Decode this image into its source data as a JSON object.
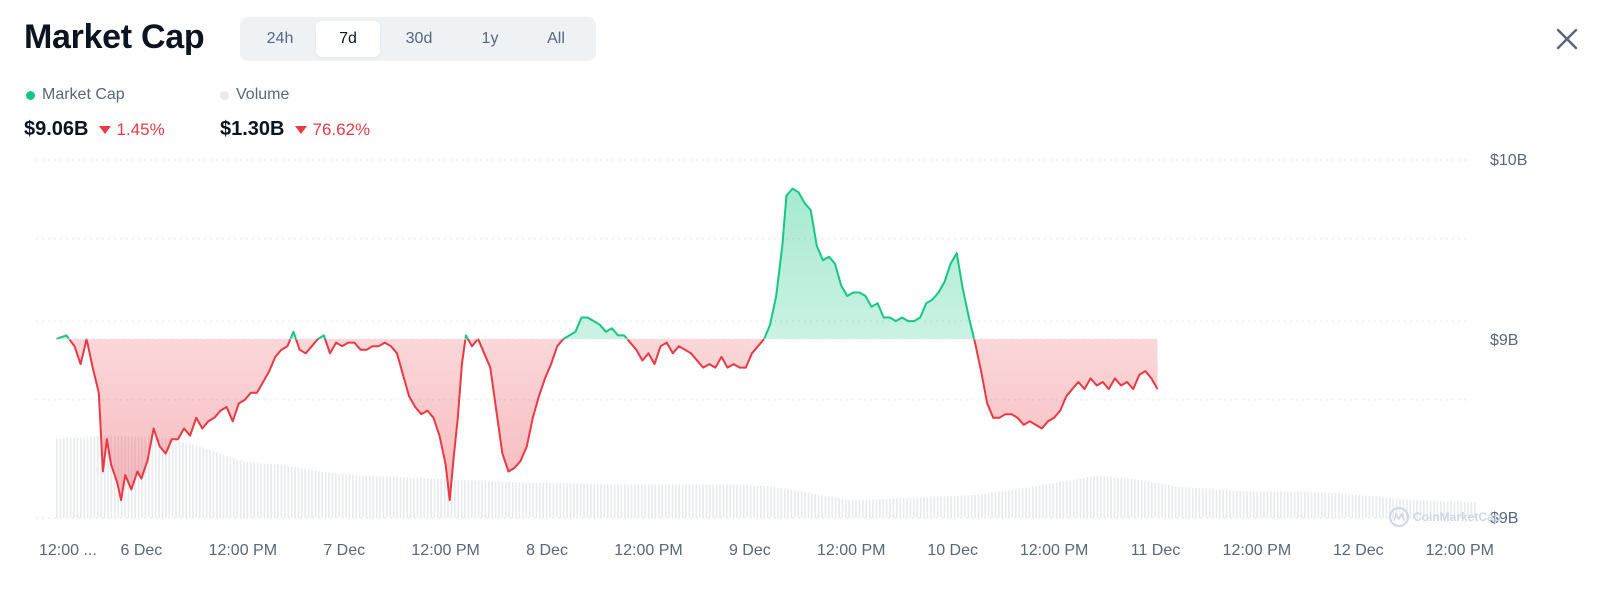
{
  "header": {
    "title": "Market Cap",
    "ranges": [
      "24h",
      "7d",
      "30d",
      "1y",
      "All"
    ],
    "active_range": "7d",
    "close_icon": "close-icon"
  },
  "legend": {
    "market_cap": {
      "label": "Market Cap",
      "color": "#16c784"
    },
    "volume": {
      "label": "Volume",
      "color": "#e8eaee"
    }
  },
  "stats": {
    "market_cap": {
      "value": "$9.06B",
      "change": "1.45%",
      "direction": "down"
    },
    "volume": {
      "value": "$1.30B",
      "change": "76.62%",
      "direction": "down"
    }
  },
  "watermark": "CoinMarketCap",
  "colors": {
    "up": "#16c784",
    "down": "#ea3943",
    "grid": "#e3e6ea",
    "axis_text": "#58667e"
  },
  "chart_data": {
    "type": "area",
    "title": "Market Cap",
    "baseline": 9.5,
    "baseline_label": "$9B",
    "y_unit": "B USD",
    "ylim": [
      9.0,
      10.0
    ],
    "y_ticks": [
      {
        "value": 10.0,
        "label": "$10B"
      },
      {
        "value": 9.5,
        "label": "$9B"
      },
      {
        "value": 9.0,
        "label": "$9B"
      }
    ],
    "x_range": [
      0,
      7.1
    ],
    "x_ticks": [
      {
        "x": 0.14,
        "label": "12:00 ..."
      },
      {
        "x": 0.5,
        "label": "6 Dec"
      },
      {
        "x": 1.0,
        "label": "12:00 PM"
      },
      {
        "x": 1.5,
        "label": "7 Dec"
      },
      {
        "x": 2.0,
        "label": "12:00 PM"
      },
      {
        "x": 2.5,
        "label": "8 Dec"
      },
      {
        "x": 3.0,
        "label": "12:00 PM"
      },
      {
        "x": 3.5,
        "label": "9 Dec"
      },
      {
        "x": 4.0,
        "label": "12:00 PM"
      },
      {
        "x": 4.5,
        "label": "10 Dec"
      },
      {
        "x": 5.0,
        "label": "12:00 PM"
      },
      {
        "x": 5.5,
        "label": "11 Dec"
      },
      {
        "x": 6.0,
        "label": "12:00 PM"
      },
      {
        "x": 6.5,
        "label": "12 Dec"
      },
      {
        "x": 7.0,
        "label": "12:00 PM"
      }
    ],
    "grid": true,
    "grid_style": "dotted",
    "series": [
      {
        "name": "Market Cap",
        "points": [
          [
            0.08,
            9.5
          ],
          [
            0.13,
            9.51
          ],
          [
            0.17,
            9.48
          ],
          [
            0.2,
            9.43
          ],
          [
            0.23,
            9.5
          ],
          [
            0.26,
            9.42
          ],
          [
            0.29,
            9.35
          ],
          [
            0.31,
            9.13
          ],
          [
            0.33,
            9.22
          ],
          [
            0.35,
            9.15
          ],
          [
            0.38,
            9.1
          ],
          [
            0.4,
            9.05
          ],
          [
            0.42,
            9.12
          ],
          [
            0.45,
            9.08
          ],
          [
            0.48,
            9.13
          ],
          [
            0.5,
            9.11
          ],
          [
            0.53,
            9.16
          ],
          [
            0.56,
            9.25
          ],
          [
            0.59,
            9.2
          ],
          [
            0.62,
            9.18
          ],
          [
            0.65,
            9.22
          ],
          [
            0.68,
            9.22
          ],
          [
            0.71,
            9.25
          ],
          [
            0.74,
            9.23
          ],
          [
            0.77,
            9.28
          ],
          [
            0.8,
            9.25
          ],
          [
            0.83,
            9.27
          ],
          [
            0.86,
            9.28
          ],
          [
            0.89,
            9.3
          ],
          [
            0.92,
            9.31
          ],
          [
            0.95,
            9.27
          ],
          [
            0.98,
            9.32
          ],
          [
            1.01,
            9.33
          ],
          [
            1.04,
            9.35
          ],
          [
            1.07,
            9.35
          ],
          [
            1.1,
            9.38
          ],
          [
            1.13,
            9.41
          ],
          [
            1.16,
            9.45
          ],
          [
            1.19,
            9.47
          ],
          [
            1.22,
            9.48
          ],
          [
            1.25,
            9.52
          ],
          [
            1.28,
            9.47
          ],
          [
            1.31,
            9.46
          ],
          [
            1.34,
            9.48
          ],
          [
            1.37,
            9.5
          ],
          [
            1.4,
            9.51
          ],
          [
            1.43,
            9.46
          ],
          [
            1.46,
            9.49
          ],
          [
            1.49,
            9.48
          ],
          [
            1.52,
            9.49
          ],
          [
            1.55,
            9.49
          ],
          [
            1.58,
            9.47
          ],
          [
            1.61,
            9.47
          ],
          [
            1.64,
            9.48
          ],
          [
            1.67,
            9.48
          ],
          [
            1.7,
            9.49
          ],
          [
            1.73,
            9.48
          ],
          [
            1.76,
            9.46
          ],
          [
            1.79,
            9.4
          ],
          [
            1.82,
            9.34
          ],
          [
            1.85,
            9.31
          ],
          [
            1.88,
            9.29
          ],
          [
            1.91,
            9.3
          ],
          [
            1.94,
            9.28
          ],
          [
            1.97,
            9.23
          ],
          [
            2.0,
            9.15
          ],
          [
            2.02,
            9.05
          ],
          [
            2.04,
            9.17
          ],
          [
            2.06,
            9.28
          ],
          [
            2.08,
            9.43
          ],
          [
            2.1,
            9.51
          ],
          [
            2.13,
            9.48
          ],
          [
            2.16,
            9.5
          ],
          [
            2.19,
            9.46
          ],
          [
            2.22,
            9.42
          ],
          [
            2.25,
            9.3
          ],
          [
            2.28,
            9.18
          ],
          [
            2.31,
            9.13
          ],
          [
            2.34,
            9.14
          ],
          [
            2.37,
            9.16
          ],
          [
            2.4,
            9.2
          ],
          [
            2.43,
            9.28
          ],
          [
            2.46,
            9.34
          ],
          [
            2.49,
            9.39
          ],
          [
            2.52,
            9.43
          ],
          [
            2.55,
            9.48
          ],
          [
            2.58,
            9.5
          ],
          [
            2.61,
            9.51
          ],
          [
            2.64,
            9.52
          ],
          [
            2.67,
            9.56
          ],
          [
            2.7,
            9.56
          ],
          [
            2.73,
            9.55
          ],
          [
            2.76,
            9.54
          ],
          [
            2.79,
            9.52
          ],
          [
            2.82,
            9.53
          ],
          [
            2.85,
            9.51
          ],
          [
            2.88,
            9.51
          ],
          [
            2.91,
            9.49
          ],
          [
            2.94,
            9.47
          ],
          [
            2.97,
            9.44
          ],
          [
            3.0,
            9.46
          ],
          [
            3.03,
            9.43
          ],
          [
            3.06,
            9.48
          ],
          [
            3.09,
            9.49
          ],
          [
            3.12,
            9.46
          ],
          [
            3.15,
            9.48
          ],
          [
            3.18,
            9.47
          ],
          [
            3.21,
            9.46
          ],
          [
            3.24,
            9.44
          ],
          [
            3.27,
            9.42
          ],
          [
            3.3,
            9.43
          ],
          [
            3.33,
            9.42
          ],
          [
            3.36,
            9.45
          ],
          [
            3.39,
            9.42
          ],
          [
            3.42,
            9.43
          ],
          [
            3.45,
            9.42
          ],
          [
            3.48,
            9.42
          ],
          [
            3.51,
            9.46
          ],
          [
            3.54,
            9.48
          ],
          [
            3.57,
            9.5
          ],
          [
            3.6,
            9.54
          ],
          [
            3.63,
            9.62
          ],
          [
            3.66,
            9.76
          ],
          [
            3.68,
            9.9
          ],
          [
            3.71,
            9.92
          ],
          [
            3.74,
            9.91
          ],
          [
            3.77,
            9.88
          ],
          [
            3.8,
            9.86
          ],
          [
            3.83,
            9.76
          ],
          [
            3.86,
            9.72
          ],
          [
            3.89,
            9.73
          ],
          [
            3.92,
            9.71
          ],
          [
            3.95,
            9.65
          ],
          [
            3.98,
            9.62
          ],
          [
            4.01,
            9.63
          ],
          [
            4.04,
            9.63
          ],
          [
            4.07,
            9.62
          ],
          [
            4.1,
            9.59
          ],
          [
            4.13,
            9.6
          ],
          [
            4.16,
            9.56
          ],
          [
            4.19,
            9.56
          ],
          [
            4.22,
            9.55
          ],
          [
            4.25,
            9.56
          ],
          [
            4.28,
            9.55
          ],
          [
            4.31,
            9.55
          ],
          [
            4.34,
            9.56
          ],
          [
            4.37,
            9.6
          ],
          [
            4.4,
            9.61
          ],
          [
            4.43,
            9.63
          ],
          [
            4.46,
            9.66
          ],
          [
            4.49,
            9.71
          ],
          [
            4.52,
            9.74
          ],
          [
            4.55,
            9.64
          ],
          [
            4.58,
            9.56
          ],
          [
            4.61,
            9.49
          ],
          [
            4.64,
            9.41
          ],
          [
            4.67,
            9.32
          ],
          [
            4.7,
            9.28
          ],
          [
            4.73,
            9.28
          ],
          [
            4.76,
            9.29
          ],
          [
            4.79,
            9.29
          ],
          [
            4.82,
            9.28
          ],
          [
            4.85,
            9.26
          ],
          [
            4.88,
            9.27
          ],
          [
            4.91,
            9.26
          ],
          [
            4.94,
            9.25
          ],
          [
            4.97,
            9.27
          ],
          [
            5.0,
            9.28
          ],
          [
            5.03,
            9.3
          ],
          [
            5.06,
            9.34
          ],
          [
            5.09,
            9.36
          ],
          [
            5.12,
            9.38
          ],
          [
            5.15,
            9.36
          ],
          [
            5.18,
            9.39
          ],
          [
            5.21,
            9.37
          ],
          [
            5.24,
            9.38
          ],
          [
            5.27,
            9.36
          ],
          [
            5.3,
            9.39
          ],
          [
            5.33,
            9.37
          ],
          [
            5.36,
            9.38
          ],
          [
            5.39,
            9.36
          ],
          [
            5.42,
            9.4
          ],
          [
            5.45,
            9.41
          ],
          [
            5.48,
            9.39
          ],
          [
            5.51,
            9.36
          ]
        ]
      },
      {
        "name": "Volume",
        "points": [
          [
            0.08,
            0.45
          ],
          [
            0.2,
            0.46
          ],
          [
            0.32,
            0.47
          ],
          [
            0.5,
            0.46
          ],
          [
            0.65,
            0.45
          ],
          [
            0.8,
            0.4
          ],
          [
            1.0,
            0.32
          ],
          [
            1.2,
            0.3
          ],
          [
            1.4,
            0.26
          ],
          [
            1.6,
            0.24
          ],
          [
            1.8,
            0.23
          ],
          [
            2.0,
            0.22
          ],
          [
            2.2,
            0.21
          ],
          [
            2.4,
            0.2
          ],
          [
            2.6,
            0.2
          ],
          [
            2.8,
            0.19
          ],
          [
            3.0,
            0.19
          ],
          [
            3.2,
            0.19
          ],
          [
            3.4,
            0.19
          ],
          [
            3.6,
            0.18
          ],
          [
            3.8,
            0.14
          ],
          [
            4.0,
            0.1
          ],
          [
            4.2,
            0.11
          ],
          [
            4.4,
            0.12
          ],
          [
            4.6,
            0.13
          ],
          [
            4.8,
            0.16
          ],
          [
            5.0,
            0.2
          ],
          [
            5.2,
            0.24
          ],
          [
            5.4,
            0.22
          ],
          [
            5.6,
            0.18
          ],
          [
            5.8,
            0.16
          ],
          [
            6.0,
            0.15
          ],
          [
            6.2,
            0.15
          ],
          [
            6.4,
            0.14
          ],
          [
            6.6,
            0.12
          ],
          [
            6.8,
            0.1
          ],
          [
            7.0,
            0.09
          ],
          [
            7.08,
            0.09
          ]
        ]
      }
    ]
  }
}
